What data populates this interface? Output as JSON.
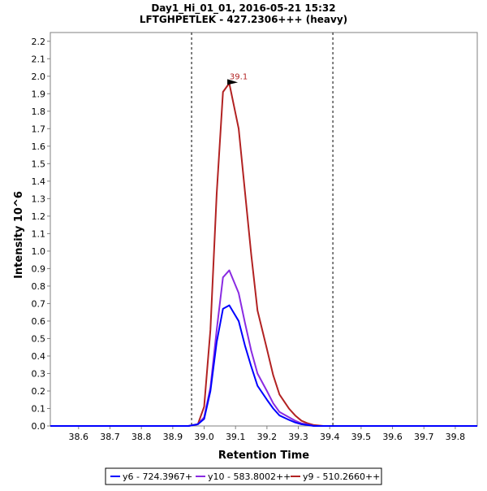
{
  "chart_data": {
    "type": "line",
    "title": "Day1_Hi_01_01, 2016-05-21 15:32",
    "subtitle": "LFTGHPETLEK - 427.2306+++ (heavy)",
    "xlabel": "Retention Time",
    "ylabel": "Intensity 10^6",
    "xlim": [
      38.51,
      39.87
    ],
    "ylim": [
      0,
      2.25
    ],
    "xticks": [
      38.6,
      38.7,
      38.8,
      38.9,
      39.0,
      39.1,
      39.2,
      39.3,
      39.4,
      39.5,
      39.6,
      39.7,
      39.8
    ],
    "yticks": [
      0.0,
      0.1,
      0.2,
      0.3,
      0.4,
      0.5,
      0.6,
      0.7,
      0.8,
      0.9,
      1.0,
      1.1,
      1.2,
      1.3,
      1.4,
      1.5,
      1.6,
      1.7,
      1.8,
      1.9,
      2.0,
      2.1,
      2.2
    ],
    "integration_bounds": [
      38.96,
      39.41
    ],
    "peak_annotation": {
      "label": "39.1",
      "x": 39.11,
      "y": 1.96
    },
    "legend_position": "bottom",
    "series": [
      {
        "name": "y6 - 724.3967+",
        "color": "#0000ff",
        "x": [
          38.51,
          38.6,
          38.7,
          38.8,
          38.9,
          38.95,
          38.98,
          39.0,
          39.02,
          39.04,
          39.06,
          39.08,
          39.11,
          39.13,
          39.15,
          39.17,
          39.2,
          39.22,
          39.24,
          39.27,
          39.29,
          39.31,
          39.33,
          39.35,
          39.38,
          39.4,
          39.45,
          39.5,
          39.6,
          39.7,
          39.8,
          39.87
        ],
        "y": [
          0.0,
          0.0,
          0.0,
          0.0,
          0.0,
          0.0,
          0.01,
          0.04,
          0.2,
          0.48,
          0.67,
          0.69,
          0.6,
          0.46,
          0.34,
          0.23,
          0.15,
          0.1,
          0.06,
          0.035,
          0.02,
          0.01,
          0.005,
          0.0,
          0.0,
          0.0,
          0.0,
          0.0,
          0.0,
          0.0,
          0.0,
          0.0
        ]
      },
      {
        "name": "y10 - 583.8002++",
        "color": "#8a2be2",
        "x": [
          38.51,
          38.6,
          38.7,
          38.8,
          38.9,
          38.95,
          38.98,
          39.0,
          39.02,
          39.04,
          39.06,
          39.08,
          39.11,
          39.13,
          39.15,
          39.17,
          39.2,
          39.22,
          39.24,
          39.27,
          39.29,
          39.31,
          39.33,
          39.35,
          39.38,
          39.4,
          39.45,
          39.5,
          39.6,
          39.7,
          39.8,
          39.87
        ],
        "y": [
          0.0,
          0.0,
          0.0,
          0.0,
          0.0,
          0.0,
          0.01,
          0.05,
          0.22,
          0.55,
          0.85,
          0.89,
          0.76,
          0.59,
          0.43,
          0.3,
          0.2,
          0.13,
          0.08,
          0.05,
          0.03,
          0.015,
          0.008,
          0.0,
          0.0,
          0.0,
          0.0,
          0.0,
          0.0,
          0.0,
          0.0,
          0.0
        ]
      },
      {
        "name": "y9 - 510.2660++",
        "color": "#b22222",
        "x": [
          38.51,
          38.6,
          38.7,
          38.8,
          38.9,
          38.95,
          38.98,
          39.0,
          39.02,
          39.04,
          39.06,
          39.08,
          39.11,
          39.13,
          39.15,
          39.17,
          39.2,
          39.22,
          39.24,
          39.27,
          39.29,
          39.31,
          39.33,
          39.35,
          39.38,
          39.4,
          39.45,
          39.5,
          39.6,
          39.7,
          39.8,
          39.87
        ],
        "y": [
          0.0,
          0.0,
          0.0,
          0.0,
          0.0,
          0.0,
          0.01,
          0.11,
          0.55,
          1.33,
          1.91,
          1.96,
          1.7,
          1.34,
          0.98,
          0.66,
          0.44,
          0.29,
          0.18,
          0.1,
          0.06,
          0.03,
          0.015,
          0.005,
          0.0,
          0.0,
          0.0,
          0.0,
          0.0,
          0.0,
          0.0,
          0.0
        ]
      }
    ]
  }
}
